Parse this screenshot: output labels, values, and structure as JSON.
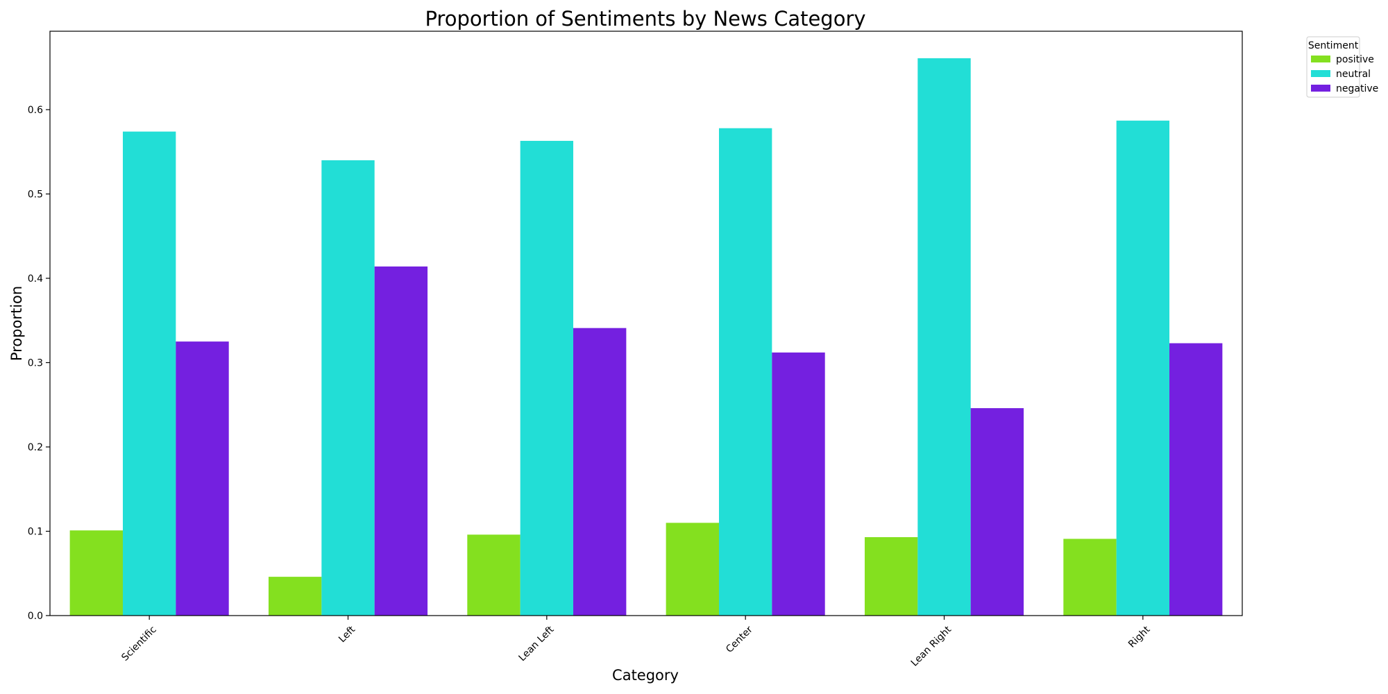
{
  "chart_data": {
    "type": "bar",
    "title": "Proportion of Sentiments by News Category",
    "xlabel": "Category",
    "ylabel": "Proportion",
    "categories": [
      "Scientific",
      "Left",
      "Lean Left",
      "Center",
      "Lean Right",
      "Right"
    ],
    "series": [
      {
        "name": "positive",
        "color": "#84e01f",
        "values": [
          0.101,
          0.046,
          0.096,
          0.11,
          0.093,
          0.091
        ]
      },
      {
        "name": "neutral",
        "color": "#22ded6",
        "values": [
          0.574,
          0.54,
          0.563,
          0.578,
          0.661,
          0.587
        ]
      },
      {
        "name": "negative",
        "color": "#7420e0",
        "values": [
          0.325,
          0.414,
          0.341,
          0.312,
          0.246,
          0.323
        ]
      }
    ],
    "ylim": [
      0,
      0.693
    ],
    "yticks": [
      0.0,
      0.1,
      0.2,
      0.3,
      0.4,
      0.5,
      0.6
    ],
    "ytick_labels": [
      "0.0",
      "0.1",
      "0.2",
      "0.3",
      "0.4",
      "0.5",
      "0.6"
    ],
    "grid": false,
    "legend": {
      "title": "Sentiment",
      "placement": "outside-top-right"
    }
  }
}
